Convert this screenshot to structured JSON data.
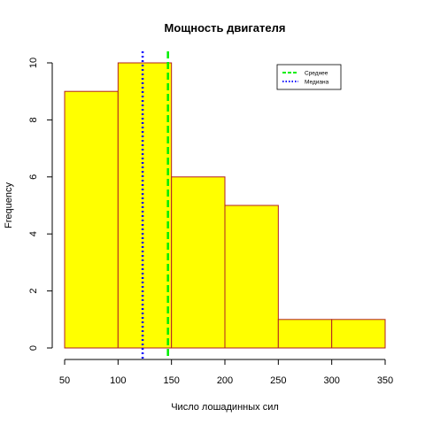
{
  "chart_data": {
    "type": "bar",
    "title": "Мощность двигателя",
    "xlabel": "Число лошадинных сил",
    "ylabel": "Frequency",
    "bins": [
      {
        "from": 50,
        "to": 100,
        "count": 9
      },
      {
        "from": 100,
        "to": 150,
        "count": 10
      },
      {
        "from": 150,
        "to": 200,
        "count": 6
      },
      {
        "from": 200,
        "to": 250,
        "count": 5
      },
      {
        "from": 250,
        "to": 300,
        "count": 1
      },
      {
        "from": 300,
        "to": 350,
        "count": 1
      }
    ],
    "xlim": [
      50,
      350
    ],
    "ylim": [
      0,
      10
    ],
    "x_ticks": [
      "50",
      "100",
      "150",
      "200",
      "250",
      "300",
      "350"
    ],
    "y_ticks": [
      "0",
      "2",
      "4",
      "6",
      "8",
      "10"
    ],
    "bar_fill": "#ffff00",
    "bar_border": "#b22222",
    "grid": false,
    "reference_lines": [
      {
        "name": "Среднее",
        "x": 146.7,
        "color": "#00ee00",
        "style": "dashed"
      },
      {
        "name": "Медиана",
        "x": 123,
        "color": "#0000ff",
        "style": "dotted"
      }
    ],
    "legend_position": "top-right"
  }
}
